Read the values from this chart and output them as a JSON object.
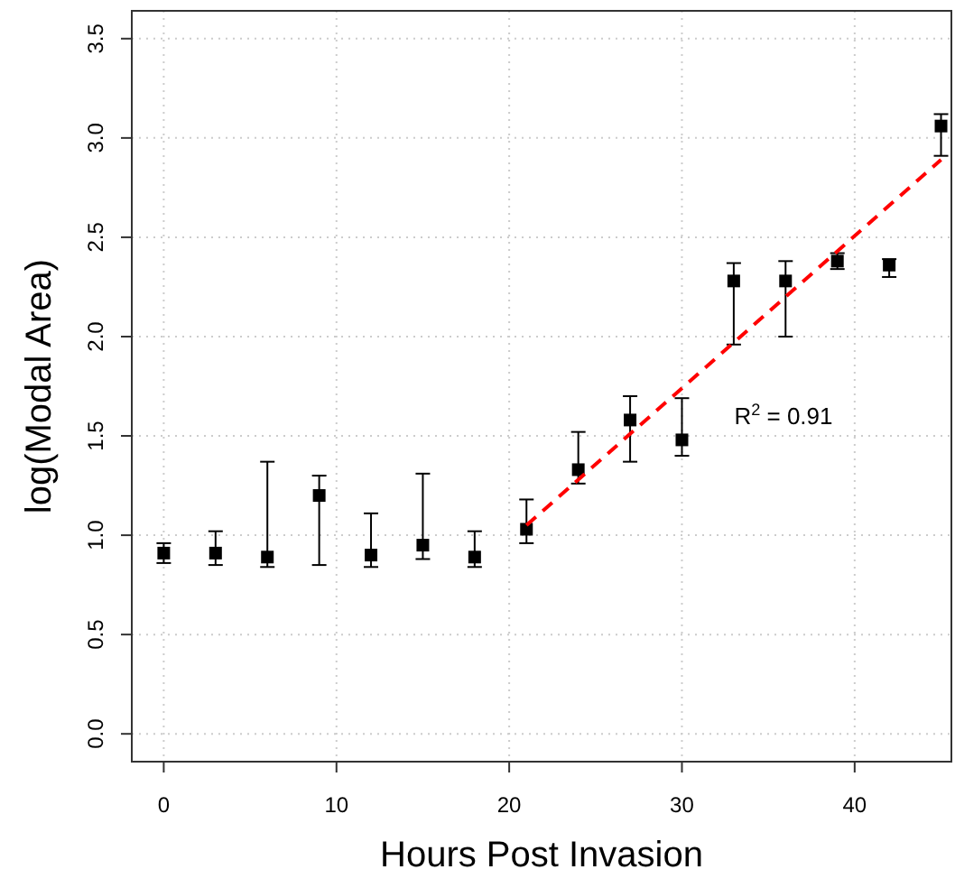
{
  "chart_data": {
    "type": "scatter",
    "xlabel": "Hours Post Invasion",
    "ylabel": "log(Modal Area)",
    "xlim": [
      -1.85,
      45.6
    ],
    "ylim": [
      -0.14,
      3.64
    ],
    "xticks": [
      0,
      10,
      20,
      30,
      40
    ],
    "yticks": [
      {
        "value": 0,
        "label": "0.0"
      },
      {
        "value": 0.5,
        "label": "0.5"
      },
      {
        "value": 1,
        "label": "1.0"
      },
      {
        "value": 1.5,
        "label": "1.5"
      },
      {
        "value": 2,
        "label": "2.0"
      },
      {
        "value": 2.5,
        "label": "2.5"
      },
      {
        "value": 3,
        "label": "3.0"
      },
      {
        "value": 3.5,
        "label": "3.5"
      }
    ],
    "grid": true,
    "marker": "square",
    "series": [
      {
        "color": "#000000",
        "x": [
          0,
          3,
          6,
          9,
          12,
          15,
          18,
          21,
          24,
          27,
          30,
          33,
          36,
          39,
          42,
          45
        ],
        "values": [
          0.91,
          0.91,
          0.89,
          1.2,
          0.9,
          0.95,
          0.89,
          1.03,
          1.33,
          1.58,
          1.48,
          2.28,
          2.28,
          2.38,
          2.36,
          3.06
        ],
        "errors": [
          [
            0.86,
            0.96
          ],
          [
            0.85,
            1.02
          ],
          [
            0.84,
            1.37
          ],
          [
            0.85,
            1.3
          ],
          [
            0.84,
            1.11
          ],
          [
            0.88,
            1.31
          ],
          [
            0.84,
            1.02
          ],
          [
            0.96,
            1.18
          ],
          [
            1.26,
            1.52
          ],
          [
            1.37,
            1.7
          ],
          [
            1.4,
            1.69
          ],
          [
            1.96,
            2.37
          ],
          [
            2,
            2.38
          ],
          [
            2.34,
            2.42
          ],
          [
            2.3,
            2.39
          ],
          [
            2.91,
            3.12
          ]
        ]
      },
      {
        "type": "line",
        "color": "#ff0000",
        "line_style": "dashed",
        "marker": "none",
        "x": [
          21,
          45
        ],
        "values": [
          1.05,
          2.89
        ]
      }
    ],
    "annotations": [
      "R$^{2}$ = 0.91"
    ]
  }
}
